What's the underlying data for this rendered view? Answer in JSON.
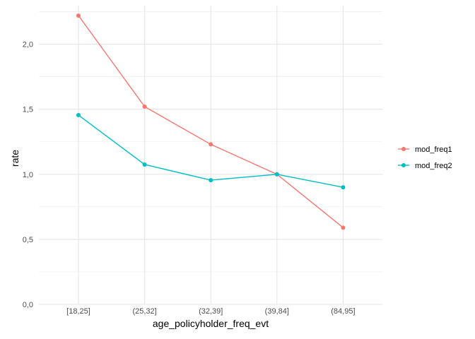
{
  "chart_data": {
    "type": "line",
    "categories": [
      "[18,25]",
      "(25,32]",
      "(32,39]",
      "(39,84]",
      "(84,95]"
    ],
    "series": [
      {
        "name": "mod_freq1",
        "color": "#F8766D",
        "values": [
          2.22,
          1.52,
          1.23,
          1.0,
          0.59
        ]
      },
      {
        "name": "mod_freq2",
        "color": "#00BFC4",
        "values": [
          1.455,
          1.075,
          0.955,
          1.0,
          0.9
        ]
      }
    ],
    "title": "",
    "xlabel": "age_policyholder_freq_evt",
    "ylabel": "rate",
    "ylim": [
      0,
      2.3
    ],
    "yticks": [
      0,
      0.5,
      1.0,
      1.5,
      2.0
    ],
    "ytick_labels": [
      "0,0",
      "0,5",
      "1,0",
      "1,5",
      "2,0"
    ],
    "grid": true,
    "legend_position": "right"
  }
}
